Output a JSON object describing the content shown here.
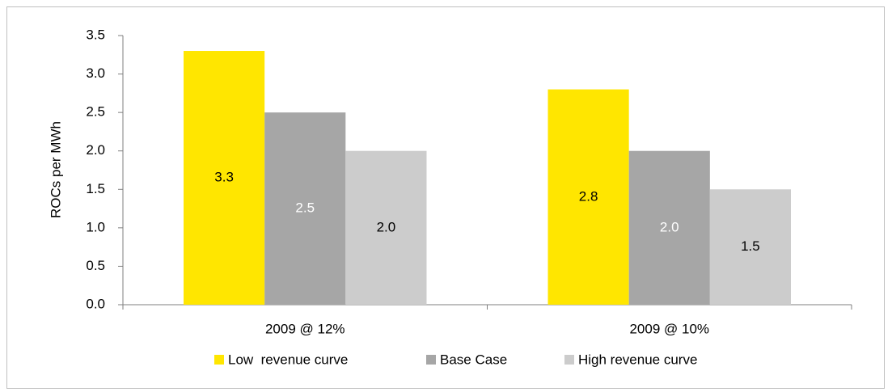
{
  "chart_data": {
    "type": "bar",
    "y_label": "ROCs per MWh",
    "categories": [
      "2009 @ 12%",
      "2009 @ 10%"
    ],
    "series": [
      {
        "name": "Low  revenue curve",
        "color": "#ffe600",
        "label_color": "#000000",
        "values": [
          3.3,
          2.8
        ],
        "value_labels": [
          "3.3",
          "2.8"
        ]
      },
      {
        "name": "Base Case",
        "color": "#a6a6a6",
        "label_color": "#ffffff",
        "values": [
          2.5,
          2.0
        ],
        "value_labels": [
          "2.5",
          "2.0"
        ]
      },
      {
        "name": "High revenue curve",
        "color": "#cccccc",
        "label_color": "#000000",
        "values": [
          2.0,
          1.5
        ],
        "value_labels": [
          "2.0",
          "1.5"
        ]
      }
    ],
    "ylim": [
      0,
      3.5
    ],
    "yticks": [
      {
        "value": 0,
        "label": "0.0"
      },
      {
        "value": 0.5,
        "label": "0.5"
      },
      {
        "value": 1,
        "label": "1.0"
      },
      {
        "value": 1.5,
        "label": "1.5"
      },
      {
        "value": 2,
        "label": "2.0"
      },
      {
        "value": 2.5,
        "label": "2.5"
      },
      {
        "value": 3,
        "label": "3.0"
      },
      {
        "value": 3.5,
        "label": "3.5"
      }
    ],
    "grid": false,
    "legend": "bottom"
  }
}
